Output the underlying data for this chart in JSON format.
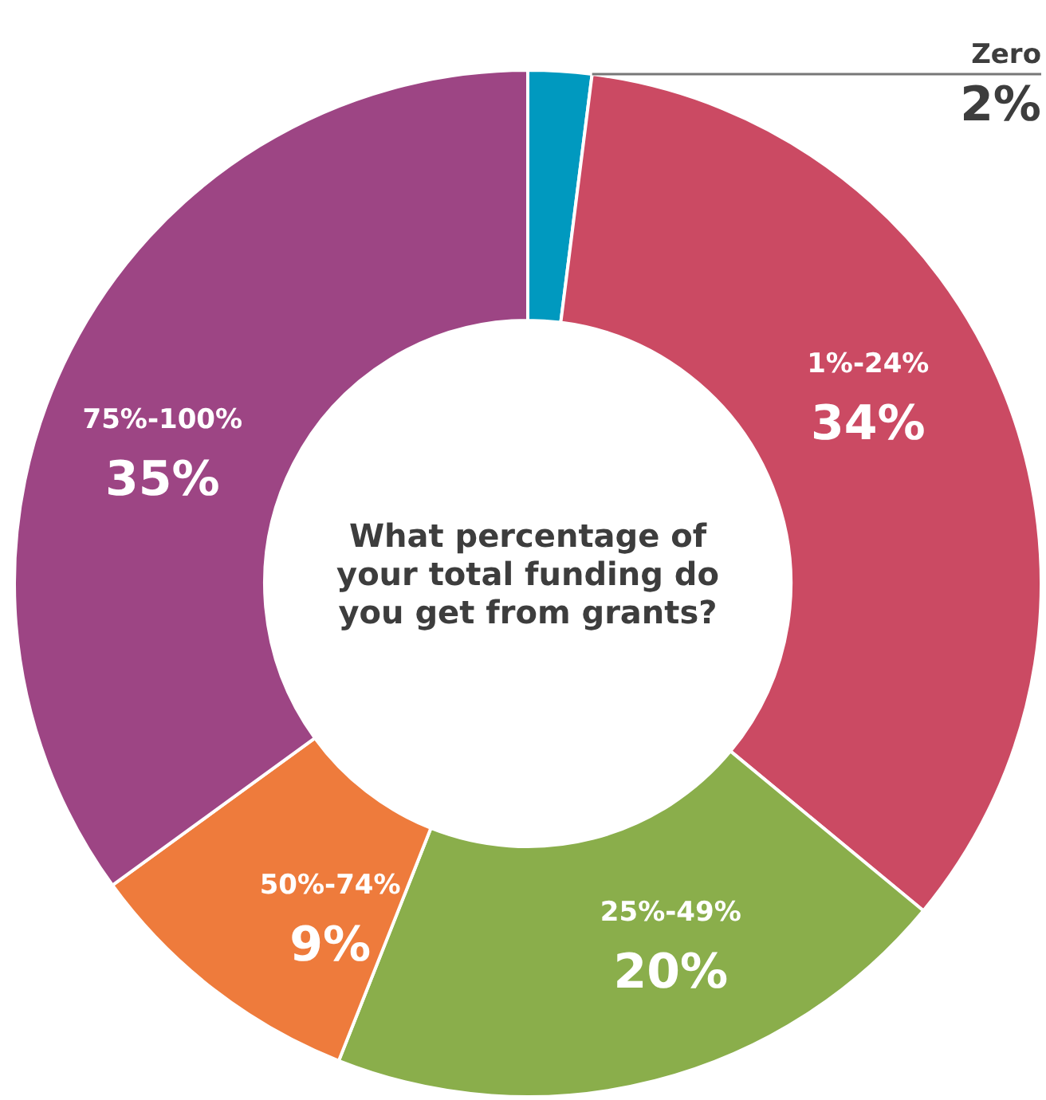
{
  "chart_data": {
    "type": "donut",
    "title": "What percentage of your total funding do you get from grants?",
    "categories": [
      "Zero",
      "1%-24%",
      "25%-49%",
      "50%-74%",
      "75%-100%"
    ],
    "values": [
      2,
      34,
      20,
      9,
      35
    ],
    "value_labels": [
      "2%",
      "34%",
      "20%",
      "9%",
      "35%"
    ],
    "colors": [
      "#0099bf",
      "#cb4a63",
      "#8aae4b",
      "#ee7b3c",
      "#9d4584"
    ],
    "legend": false
  }
}
